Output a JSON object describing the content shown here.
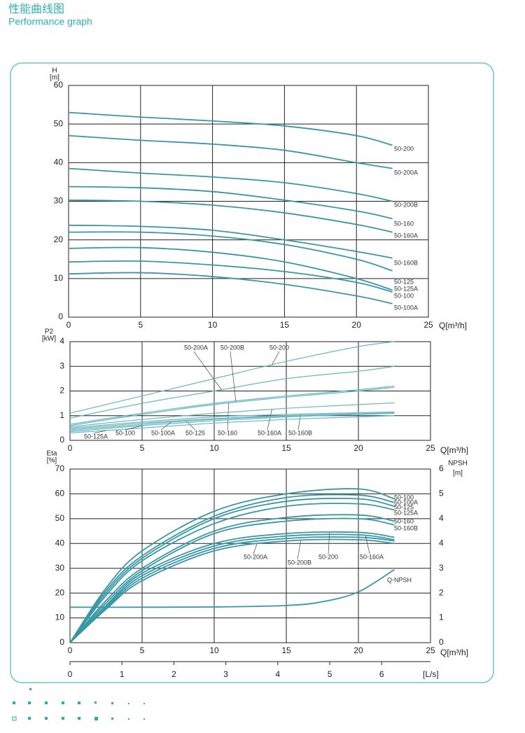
{
  "header": {
    "title": "性能曲线图",
    "subtitle": "Performance graph"
  },
  "chart_data": [
    {
      "type": "line",
      "ylabel": "H",
      "yunit": "[m]",
      "xlabel": "Q[m³/h]",
      "color": "#3a97a5",
      "xlim": [
        0,
        25
      ],
      "xticks": [
        0,
        5,
        10,
        15,
        20,
        25
      ],
      "ylim": [
        0,
        60
      ],
      "yticks": [
        0,
        10,
        20,
        30,
        40,
        50,
        60
      ],
      "grid": true,
      "x": [
        0,
        5,
        10,
        15,
        20,
        22.5
      ],
      "series": [
        {
          "name": "50-200",
          "values": [
            53,
            51.8,
            50.8,
            49.5,
            47,
            44.5
          ]
        },
        {
          "name": "50-200A",
          "values": [
            47,
            45.8,
            44.8,
            43.2,
            40,
            38.5
          ]
        },
        {
          "name": "50-200B",
          "values": [
            38.5,
            37.3,
            36.3,
            34.8,
            32,
            30
          ]
        },
        {
          "name": "50-160",
          "values": [
            33.8,
            33.5,
            32.5,
            30.3,
            27.5,
            25.5
          ]
        },
        {
          "name": "50-160A",
          "values": [
            30.3,
            30,
            29,
            27,
            24,
            22
          ]
        },
        {
          "name": "50-160B",
          "values": [
            23.8,
            23.5,
            22.5,
            20,
            17,
            15.3
          ]
        },
        {
          "name": "50-125",
          "values": [
            22,
            22,
            21,
            18.8,
            15,
            12
          ]
        },
        {
          "name": "50-125A",
          "values": [
            17.8,
            18,
            16.8,
            14.3,
            10,
            7
          ]
        },
        {
          "name": "50-100",
          "values": [
            14.3,
            14.5,
            13.5,
            11.8,
            9,
            6.5
          ]
        },
        {
          "name": "50-100A",
          "values": [
            11.2,
            11.5,
            10.5,
            8.5,
            5.5,
            3.5
          ]
        }
      ]
    },
    {
      "type": "line",
      "ylabel": "P2",
      "yunit": "[kW]",
      "xlabel": "Q[m³/h]",
      "color": "#6ab6c2",
      "xlim": [
        0,
        25
      ],
      "xticks": [
        0,
        5,
        10,
        15,
        20,
        25
      ],
      "ylim": [
        0,
        4
      ],
      "yticks": [
        0,
        1,
        2,
        3,
        4
      ],
      "grid": true,
      "x": [
        0,
        5,
        10,
        15,
        20,
        22.5
      ],
      "series": [
        {
          "name": "50-200",
          "values": [
            1.1,
            1.8,
            2.5,
            3.2,
            3.8,
            4.0
          ]
        },
        {
          "name": "50-200A",
          "values": [
            0.9,
            1.5,
            2.0,
            2.5,
            2.8,
            3.0
          ]
        },
        {
          "name": "50-200B",
          "values": [
            0.65,
            1.1,
            1.5,
            1.8,
            2.05,
            2.2
          ]
        },
        {
          "name": "50-160",
          "values": [
            0.6,
            1.05,
            1.45,
            1.75,
            2.0,
            2.15
          ]
        },
        {
          "name": "50-160A",
          "values": [
            0.55,
            0.85,
            1.1,
            1.3,
            1.45,
            1.52
          ]
        },
        {
          "name": "50-160B",
          "values": [
            0.5,
            0.75,
            0.95,
            1.05,
            1.12,
            1.15
          ]
        },
        {
          "name": "50-125",
          "values": [
            0.45,
            0.7,
            0.88,
            1.0,
            1.08,
            1.12
          ]
        },
        {
          "name": "50-125A",
          "values": [
            0.3,
            0.5,
            0.7,
            0.85,
            0.95,
            1.0
          ]
        },
        {
          "name": "50-100",
          "values": [
            0.35,
            0.6,
            0.8,
            0.95,
            1.05,
            1.1
          ]
        },
        {
          "name": "50-100A",
          "values": [
            0.4,
            0.65,
            0.85,
            0.98,
            1.06,
            1.1
          ]
        }
      ]
    },
    {
      "type": "line",
      "ylabel": "Eta",
      "yunit": "[%]",
      "xlabel": "Q[m³/h]",
      "y2label": "NPSH",
      "y2unit": "[m]",
      "x2label": "[L/s]",
      "color": "#3a97a5",
      "xlim": [
        0,
        25
      ],
      "xticks": [
        0,
        5,
        10,
        15,
        20,
        25
      ],
      "ylim": [
        0,
        70
      ],
      "yticks": [
        0,
        10,
        20,
        30,
        40,
        50,
        60,
        70
      ],
      "grid": true,
      "y2labels": [
        "0",
        "1",
        "2",
        "3",
        "4",
        "4",
        "5",
        "6"
      ],
      "x2lim": [
        0,
        6.94
      ],
      "x2ticks": [
        0,
        1,
        2,
        3,
        4,
        5,
        6
      ],
      "x": [
        0,
        2.5,
        5,
        10,
        15,
        20,
        22.5
      ],
      "series": [
        {
          "name": "50-100",
          "values": [
            0,
            22,
            37,
            53,
            60,
            62,
            58
          ]
        },
        {
          "name": "50-100A",
          "values": [
            0,
            21,
            35,
            51,
            58.5,
            59.5,
            56.5
          ]
        },
        {
          "name": "50-125",
          "values": [
            0,
            20,
            34,
            50,
            57,
            58,
            55
          ]
        },
        {
          "name": "50-125A",
          "values": [
            0,
            19,
            33,
            48,
            55,
            56,
            53.5
          ]
        },
        {
          "name": "50-160",
          "values": [
            0,
            17,
            30,
            45,
            50.5,
            51.5,
            49
          ]
        },
        {
          "name": "50-160B",
          "values": [
            0,
            16,
            29,
            44,
            49,
            50,
            47.5
          ]
        },
        {
          "name": "50-200A",
          "values": [
            0,
            14,
            26,
            38,
            42,
            42.5,
            41
          ]
        },
        {
          "name": "50-200B",
          "values": [
            0,
            13.5,
            25,
            37,
            41,
            41.5,
            40
          ]
        },
        {
          "name": "50-200",
          "values": [
            0,
            15,
            28,
            40,
            44,
            44.5,
            42.5
          ]
        },
        {
          "name": "50-160A",
          "values": [
            0,
            14.5,
            27,
            39,
            43,
            43.5,
            41.5
          ]
        },
        {
          "name": "Q-NPSH",
          "x": [
            0,
            5,
            10,
            15,
            17.5,
            20,
            22.5
          ],
          "values": [
            14.3,
            14.3,
            14.4,
            15,
            16.5,
            20.5,
            29.5
          ]
        }
      ]
    }
  ]
}
